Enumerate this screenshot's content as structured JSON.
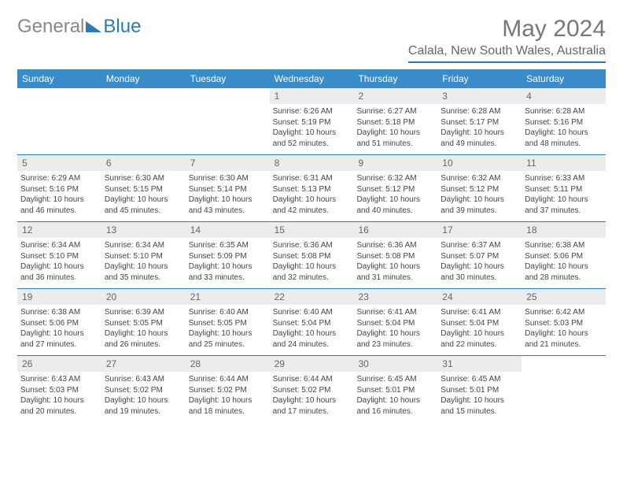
{
  "logo": {
    "text_left": "General",
    "text_right": "Blue",
    "triangle_color": "#2b7ab8"
  },
  "title": "May 2024",
  "location": "Calala, New South Wales, Australia",
  "colors": {
    "header_bg": "#3a8bc9",
    "header_text": "#ffffff",
    "daynum_bg": "#ececec",
    "border": "#2b7ab8",
    "text": "#444444",
    "title_text": "#777777"
  },
  "day_names": [
    "Sunday",
    "Monday",
    "Tuesday",
    "Wednesday",
    "Thursday",
    "Friday",
    "Saturday"
  ],
  "weeks": [
    [
      {
        "num": "",
        "sunrise": "",
        "sunset": "",
        "daylight": ""
      },
      {
        "num": "",
        "sunrise": "",
        "sunset": "",
        "daylight": ""
      },
      {
        "num": "",
        "sunrise": "",
        "sunset": "",
        "daylight": ""
      },
      {
        "num": "1",
        "sunrise": "Sunrise: 6:26 AM",
        "sunset": "Sunset: 5:19 PM",
        "daylight": "Daylight: 10 hours and 52 minutes."
      },
      {
        "num": "2",
        "sunrise": "Sunrise: 6:27 AM",
        "sunset": "Sunset: 5:18 PM",
        "daylight": "Daylight: 10 hours and 51 minutes."
      },
      {
        "num": "3",
        "sunrise": "Sunrise: 6:28 AM",
        "sunset": "Sunset: 5:17 PM",
        "daylight": "Daylight: 10 hours and 49 minutes."
      },
      {
        "num": "4",
        "sunrise": "Sunrise: 6:28 AM",
        "sunset": "Sunset: 5:16 PM",
        "daylight": "Daylight: 10 hours and 48 minutes."
      }
    ],
    [
      {
        "num": "5",
        "sunrise": "Sunrise: 6:29 AM",
        "sunset": "Sunset: 5:16 PM",
        "daylight": "Daylight: 10 hours and 46 minutes."
      },
      {
        "num": "6",
        "sunrise": "Sunrise: 6:30 AM",
        "sunset": "Sunset: 5:15 PM",
        "daylight": "Daylight: 10 hours and 45 minutes."
      },
      {
        "num": "7",
        "sunrise": "Sunrise: 6:30 AM",
        "sunset": "Sunset: 5:14 PM",
        "daylight": "Daylight: 10 hours and 43 minutes."
      },
      {
        "num": "8",
        "sunrise": "Sunrise: 6:31 AM",
        "sunset": "Sunset: 5:13 PM",
        "daylight": "Daylight: 10 hours and 42 minutes."
      },
      {
        "num": "9",
        "sunrise": "Sunrise: 6:32 AM",
        "sunset": "Sunset: 5:12 PM",
        "daylight": "Daylight: 10 hours and 40 minutes."
      },
      {
        "num": "10",
        "sunrise": "Sunrise: 6:32 AM",
        "sunset": "Sunset: 5:12 PM",
        "daylight": "Daylight: 10 hours and 39 minutes."
      },
      {
        "num": "11",
        "sunrise": "Sunrise: 6:33 AM",
        "sunset": "Sunset: 5:11 PM",
        "daylight": "Daylight: 10 hours and 37 minutes."
      }
    ],
    [
      {
        "num": "12",
        "sunrise": "Sunrise: 6:34 AM",
        "sunset": "Sunset: 5:10 PM",
        "daylight": "Daylight: 10 hours and 36 minutes."
      },
      {
        "num": "13",
        "sunrise": "Sunrise: 6:34 AM",
        "sunset": "Sunset: 5:10 PM",
        "daylight": "Daylight: 10 hours and 35 minutes."
      },
      {
        "num": "14",
        "sunrise": "Sunrise: 6:35 AM",
        "sunset": "Sunset: 5:09 PM",
        "daylight": "Daylight: 10 hours and 33 minutes."
      },
      {
        "num": "15",
        "sunrise": "Sunrise: 6:36 AM",
        "sunset": "Sunset: 5:08 PM",
        "daylight": "Daylight: 10 hours and 32 minutes."
      },
      {
        "num": "16",
        "sunrise": "Sunrise: 6:36 AM",
        "sunset": "Sunset: 5:08 PM",
        "daylight": "Daylight: 10 hours and 31 minutes."
      },
      {
        "num": "17",
        "sunrise": "Sunrise: 6:37 AM",
        "sunset": "Sunset: 5:07 PM",
        "daylight": "Daylight: 10 hours and 30 minutes."
      },
      {
        "num": "18",
        "sunrise": "Sunrise: 6:38 AM",
        "sunset": "Sunset: 5:06 PM",
        "daylight": "Daylight: 10 hours and 28 minutes."
      }
    ],
    [
      {
        "num": "19",
        "sunrise": "Sunrise: 6:38 AM",
        "sunset": "Sunset: 5:06 PM",
        "daylight": "Daylight: 10 hours and 27 minutes."
      },
      {
        "num": "20",
        "sunrise": "Sunrise: 6:39 AM",
        "sunset": "Sunset: 5:05 PM",
        "daylight": "Daylight: 10 hours and 26 minutes."
      },
      {
        "num": "21",
        "sunrise": "Sunrise: 6:40 AM",
        "sunset": "Sunset: 5:05 PM",
        "daylight": "Daylight: 10 hours and 25 minutes."
      },
      {
        "num": "22",
        "sunrise": "Sunrise: 6:40 AM",
        "sunset": "Sunset: 5:04 PM",
        "daylight": "Daylight: 10 hours and 24 minutes."
      },
      {
        "num": "23",
        "sunrise": "Sunrise: 6:41 AM",
        "sunset": "Sunset: 5:04 PM",
        "daylight": "Daylight: 10 hours and 23 minutes."
      },
      {
        "num": "24",
        "sunrise": "Sunrise: 6:41 AM",
        "sunset": "Sunset: 5:04 PM",
        "daylight": "Daylight: 10 hours and 22 minutes."
      },
      {
        "num": "25",
        "sunrise": "Sunrise: 6:42 AM",
        "sunset": "Sunset: 5:03 PM",
        "daylight": "Daylight: 10 hours and 21 minutes."
      }
    ],
    [
      {
        "num": "26",
        "sunrise": "Sunrise: 6:43 AM",
        "sunset": "Sunset: 5:03 PM",
        "daylight": "Daylight: 10 hours and 20 minutes."
      },
      {
        "num": "27",
        "sunrise": "Sunrise: 6:43 AM",
        "sunset": "Sunset: 5:02 PM",
        "daylight": "Daylight: 10 hours and 19 minutes."
      },
      {
        "num": "28",
        "sunrise": "Sunrise: 6:44 AM",
        "sunset": "Sunset: 5:02 PM",
        "daylight": "Daylight: 10 hours and 18 minutes."
      },
      {
        "num": "29",
        "sunrise": "Sunrise: 6:44 AM",
        "sunset": "Sunset: 5:02 PM",
        "daylight": "Daylight: 10 hours and 17 minutes."
      },
      {
        "num": "30",
        "sunrise": "Sunrise: 6:45 AM",
        "sunset": "Sunset: 5:01 PM",
        "daylight": "Daylight: 10 hours and 16 minutes."
      },
      {
        "num": "31",
        "sunrise": "Sunrise: 6:45 AM",
        "sunset": "Sunset: 5:01 PM",
        "daylight": "Daylight: 10 hours and 15 minutes."
      },
      {
        "num": "",
        "sunrise": "",
        "sunset": "",
        "daylight": ""
      }
    ]
  ]
}
